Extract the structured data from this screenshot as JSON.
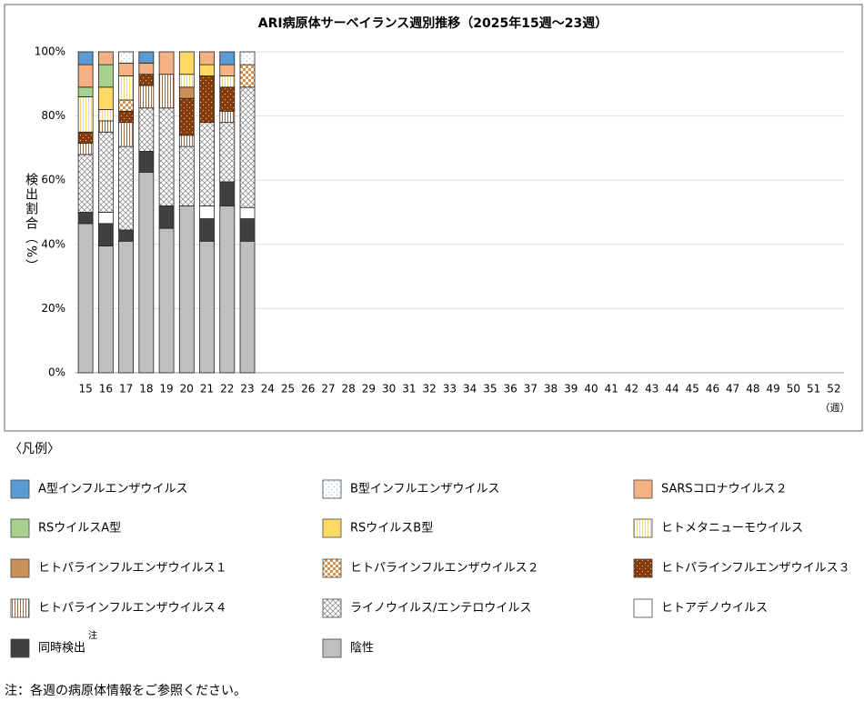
{
  "chart_data": {
    "type": "stacked_bar",
    "title": "ARI病原体サーベイランス週別推移（2025年15週～23週）",
    "y_label": "検出割合（%）",
    "x_label": "（週）",
    "legend_title": "〈凡例〉",
    "legend_note": "注",
    "footnote": "注：各週の病原体情報をご参照ください。",
    "grid": true,
    "ylim": [
      0,
      100
    ],
    "yticks": [
      {
        "value": 0,
        "label": "0%"
      },
      {
        "value": 20,
        "label": "20%"
      },
      {
        "value": 40,
        "label": "40%"
      },
      {
        "value": 60,
        "label": "60%"
      },
      {
        "value": 80,
        "label": "80%"
      },
      {
        "value": 100,
        "label": "100%"
      }
    ],
    "categories": [
      "15",
      "16",
      "17",
      "18",
      "19",
      "20",
      "21",
      "22",
      "23",
      "24",
      "25",
      "26",
      "27",
      "28",
      "29",
      "30",
      "31",
      "32",
      "33",
      "34",
      "35",
      "36",
      "37",
      "38",
      "39",
      "40",
      "41",
      "42",
      "43",
      "44",
      "45",
      "46",
      "47",
      "48",
      "49",
      "50",
      "51",
      "52"
    ],
    "series": [
      {
        "name": "A型インフルエンザウイルス",
        "color": "#5b9bd5",
        "pattern": "solid",
        "values": [
          4,
          0,
          0,
          3.5,
          0,
          0,
          0,
          4,
          0,
          null,
          null,
          null,
          null,
          null,
          null,
          null,
          null,
          null,
          null,
          null,
          null,
          null,
          null,
          null,
          null,
          null,
          null,
          null,
          null,
          null,
          null,
          null,
          null,
          null,
          null,
          null,
          null,
          null
        ]
      },
      {
        "name": "B型インフルエンザウイルス",
        "color": "#9dc3e6",
        "pattern": "dots",
        "values": [
          0,
          0,
          3.5,
          0,
          0,
          0,
          0,
          0,
          4,
          null,
          null,
          null,
          null,
          null,
          null,
          null,
          null,
          null,
          null,
          null,
          null,
          null,
          null,
          null,
          null,
          null,
          null,
          null,
          null,
          null,
          null,
          null,
          null,
          null,
          null,
          null,
          null,
          null
        ]
      },
      {
        "name": "SARSコロナウイルス２",
        "color": "#f4b183",
        "pattern": "solid",
        "values": [
          7,
          4,
          4,
          3.5,
          7,
          0,
          4,
          3.5,
          0,
          null,
          null,
          null,
          null,
          null,
          null,
          null,
          null,
          null,
          null,
          null,
          null,
          null,
          null,
          null,
          null,
          null,
          null,
          null,
          null,
          null,
          null,
          null,
          null,
          null,
          null,
          null,
          null,
          null
        ]
      },
      {
        "name": "RSウイルスA型",
        "color": "#a9d18e",
        "pattern": "solid",
        "values": [
          3,
          7,
          0,
          0,
          0,
          0,
          0,
          0,
          0,
          null,
          null,
          null,
          null,
          null,
          null,
          null,
          null,
          null,
          null,
          null,
          null,
          null,
          null,
          null,
          null,
          null,
          null,
          null,
          null,
          null,
          null,
          null,
          null,
          null,
          null,
          null,
          null,
          null
        ]
      },
      {
        "name": "RSウイルスB型",
        "color": "#ffd966",
        "pattern": "solid",
        "values": [
          0,
          7,
          0,
          0,
          0,
          7,
          3.5,
          0,
          0,
          null,
          null,
          null,
          null,
          null,
          null,
          null,
          null,
          null,
          null,
          null,
          null,
          null,
          null,
          null,
          null,
          null,
          null,
          null,
          null,
          null,
          null,
          null,
          null,
          null,
          null,
          null,
          null,
          null
        ]
      },
      {
        "name": "ヒトメタニューモウイルス",
        "color": "#f2d77a",
        "pattern": "vlines",
        "values": [
          11,
          3.5,
          7.5,
          0,
          0,
          4,
          0,
          3.5,
          0,
          null,
          null,
          null,
          null,
          null,
          null,
          null,
          null,
          null,
          null,
          null,
          null,
          null,
          null,
          null,
          null,
          null,
          null,
          null,
          null,
          null,
          null,
          null,
          null,
          null,
          null,
          null,
          null,
          null
        ]
      },
      {
        "name": "ヒトパラインフルエンザウイルス１",
        "color": "#c9905a",
        "pattern": "solid",
        "values": [
          0,
          0,
          0,
          0,
          0,
          3.5,
          0,
          0,
          0,
          null,
          null,
          null,
          null,
          null,
          null,
          null,
          null,
          null,
          null,
          null,
          null,
          null,
          null,
          null,
          null,
          null,
          null,
          null,
          null,
          null,
          null,
          null,
          null,
          null,
          null,
          null,
          null,
          null
        ]
      },
      {
        "name": "ヒトパラインフルエンザウイルス２",
        "color": "#d9904a",
        "pattern": "checker",
        "values": [
          0,
          0,
          3.5,
          0,
          0,
          0,
          0,
          0,
          7,
          null,
          null,
          null,
          null,
          null,
          null,
          null,
          null,
          null,
          null,
          null,
          null,
          null,
          null,
          null,
          null,
          null,
          null,
          null,
          null,
          null,
          null,
          null,
          null,
          null,
          null,
          null,
          null,
          null
        ]
      },
      {
        "name": "ヒトパラインフルエンザウイルス３",
        "color": "#843c0c",
        "pattern": "dotson",
        "values": [
          3.5,
          0,
          3.5,
          3.5,
          0,
          11.5,
          14.5,
          7.5,
          0,
          null,
          null,
          null,
          null,
          null,
          null,
          null,
          null,
          null,
          null,
          null,
          null,
          null,
          null,
          null,
          null,
          null,
          null,
          null,
          null,
          null,
          null,
          null,
          null,
          null,
          null,
          null,
          null,
          null
        ]
      },
      {
        "name": "ヒトパラインフルエンザウイルス４",
        "color": "#9a6a4a",
        "pattern": "vlines",
        "values": [
          3.5,
          3.5,
          7.5,
          7,
          10.5,
          3.5,
          0,
          3.5,
          0,
          null,
          null,
          null,
          null,
          null,
          null,
          null,
          null,
          null,
          null,
          null,
          null,
          null,
          null,
          null,
          null,
          null,
          null,
          null,
          null,
          null,
          null,
          null,
          null,
          null,
          null,
          null,
          null,
          null
        ]
      },
      {
        "name": "ライノウイルス/エンテロウイルス",
        "color": "#7f7f7f",
        "pattern": "crosshatch",
        "values": [
          18,
          25,
          26,
          13.5,
          30.5,
          18.5,
          26,
          18.5,
          37.5,
          null,
          null,
          null,
          null,
          null,
          null,
          null,
          null,
          null,
          null,
          null,
          null,
          null,
          null,
          null,
          null,
          null,
          null,
          null,
          null,
          null,
          null,
          null,
          null,
          null,
          null,
          null,
          null,
          null
        ]
      },
      {
        "name": "ヒトアデノウイルス",
        "color": "#ffffff",
        "pattern": "solid",
        "values": [
          0,
          3.5,
          0,
          0,
          0,
          0,
          4,
          0,
          3.5,
          null,
          null,
          null,
          null,
          null,
          null,
          null,
          null,
          null,
          null,
          null,
          null,
          null,
          null,
          null,
          null,
          null,
          null,
          null,
          null,
          null,
          null,
          null,
          null,
          null,
          null,
          null,
          null,
          null
        ]
      },
      {
        "name": "同時検出",
        "color": "#404040",
        "pattern": "solid",
        "values": [
          3.5,
          7,
          3.5,
          6.5,
          7,
          0,
          7,
          7.5,
          7,
          null,
          null,
          null,
          null,
          null,
          null,
          null,
          null,
          null,
          null,
          null,
          null,
          null,
          null,
          null,
          null,
          null,
          null,
          null,
          null,
          null,
          null,
          null,
          null,
          null,
          null,
          null,
          null,
          null
        ]
      },
      {
        "name": "陰性",
        "color": "#bfbfbf",
        "pattern": "solid",
        "values": [
          46.5,
          39.5,
          41,
          62.5,
          45,
          52,
          41,
          52,
          41,
          null,
          null,
          null,
          null,
          null,
          null,
          null,
          null,
          null,
          null,
          null,
          null,
          null,
          null,
          null,
          null,
          null,
          null,
          null,
          null,
          null,
          null,
          null,
          null,
          null,
          null,
          null,
          null,
          null
        ]
      }
    ]
  }
}
